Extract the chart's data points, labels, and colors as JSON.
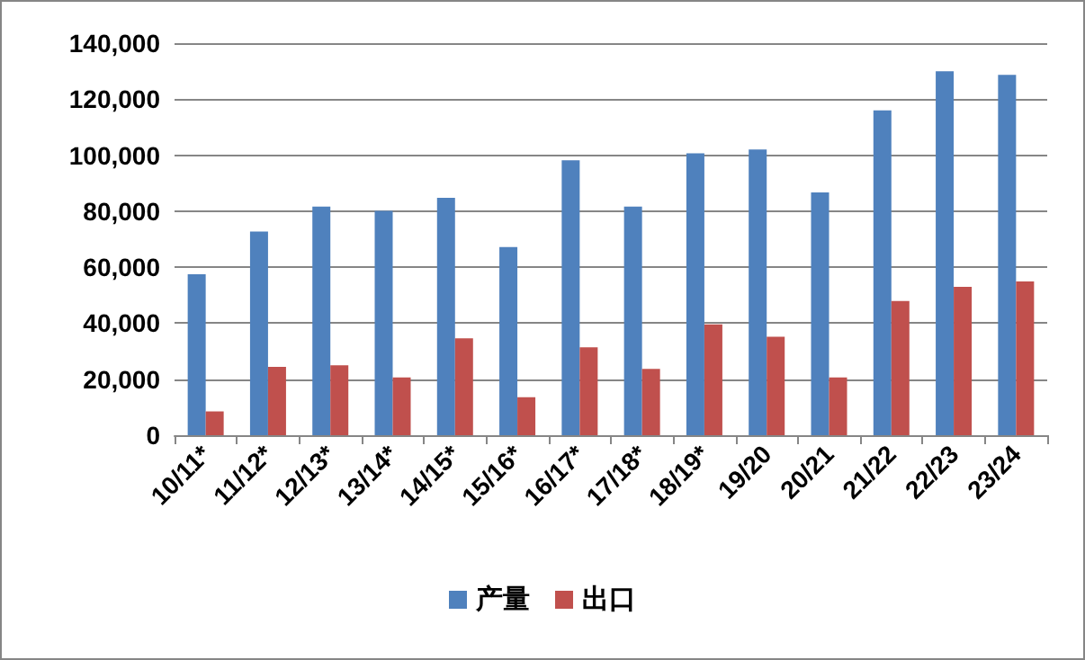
{
  "chart_data": {
    "type": "bar",
    "categories": [
      "10/11*",
      "11/12*",
      "12/13*",
      "13/14*",
      "14/15*",
      "15/16*",
      "16/17*",
      "17/18*",
      "18/19*",
      "19/20",
      "20/21",
      "21/22",
      "22/23",
      "23/24"
    ],
    "series": [
      {
        "name": "产量",
        "color": "#4f81bd",
        "values": [
          57500,
          72700,
          81600,
          80100,
          84800,
          67200,
          98200,
          81600,
          100700,
          102000,
          86700,
          116000,
          130000,
          128700
        ]
      },
      {
        "name": "出口",
        "color": "#c0504d",
        "values": [
          8500,
          24400,
          25000,
          20600,
          34600,
          13600,
          31400,
          23700,
          39600,
          35200,
          20600,
          47900,
          53000,
          54900
        ]
      }
    ],
    "ylim": [
      0,
      140000
    ],
    "yticks": [
      0,
      {
        "value": 20000,
        "label": "20,000"
      },
      {
        "value": 40000,
        "label": "40,000"
      },
      {
        "value": 60000,
        "label": "60,000"
      },
      {
        "value": 80000,
        "label": "80,000"
      },
      {
        "value": 100000,
        "label": "100,000"
      },
      {
        "value": 120000,
        "label": "120,000"
      },
      {
        "value": 140000,
        "label": "140,000"
      }
    ],
    "grid": "y",
    "legend": "bottom"
  }
}
